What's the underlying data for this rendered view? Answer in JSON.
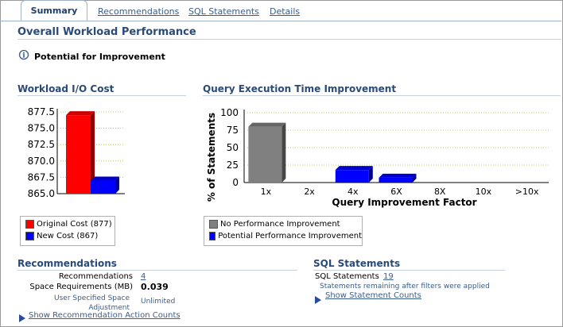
{
  "tabs": [
    {
      "label": "Summary",
      "active": true
    },
    {
      "label": "Recommendations",
      "active": false
    },
    {
      "label": "SQL Statements",
      "active": false
    },
    {
      "label": "Details",
      "active": false
    }
  ],
  "overall": {
    "title": "Overall Workload Performance",
    "info_icon": "info-icon",
    "potential_label": "Potential for Improvement"
  },
  "io_cost": {
    "title": "Workload I/O Cost",
    "legend": [
      {
        "label": "Original Cost (877)",
        "color": "#ff0000"
      },
      {
        "label": "New Cost (867)",
        "color": "#0000ff"
      }
    ]
  },
  "query_time": {
    "title": "Query Execution Time Improvement",
    "legend": [
      {
        "label": "No Performance Improvement",
        "color": "#808080"
      },
      {
        "label": "Potential Performance Improvement",
        "color": "#0000ff"
      }
    ]
  },
  "chart_data": [
    {
      "type": "bar",
      "title": "Workload I/O Cost",
      "series": [
        {
          "name": "Original Cost (877)",
          "values": [
            877
          ]
        },
        {
          "name": "New Cost (867)",
          "values": [
            867
          ]
        }
      ],
      "ylim": [
        865.0,
        877.5
      ],
      "yticks": [
        "877.5",
        "875.0",
        "872.5",
        "870.0",
        "867.5",
        "865.0"
      ],
      "grid": true
    },
    {
      "type": "bar",
      "title": "Query Execution Time Improvement",
      "xlabel": "Query Improvement Factor",
      "ylabel": "% of Statements",
      "categories": [
        "1x",
        "2x",
        "4x",
        "6X",
        "8X",
        "10x",
        ">10x"
      ],
      "series": [
        {
          "name": "No Performance Improvement",
          "values": [
            80,
            0,
            0,
            0,
            0,
            0,
            0
          ]
        },
        {
          "name": "Potential Performance Improvement",
          "values": [
            0,
            0,
            18,
            7,
            0,
            0,
            0
          ]
        }
      ],
      "ylim": [
        0,
        100
      ],
      "yticks": [
        "100",
        "75",
        "50",
        "25",
        "0"
      ],
      "grid": true
    }
  ],
  "recommendations": {
    "title": "Recommendations",
    "rows": [
      {
        "label": "Recommendations",
        "value": "4"
      },
      {
        "label": "Space Requirements (MB)",
        "value": "0.039"
      }
    ],
    "user_space_label": "User Specified Space Adjustment",
    "user_space_value": "Unlimited",
    "show_link": "Show Recommendation Action Counts"
  },
  "sql": {
    "title": "SQL Statements",
    "label": "SQL Statements",
    "value": "19",
    "note": "Statements remaining after filters were applied",
    "show_link": "Show Statement Counts"
  }
}
